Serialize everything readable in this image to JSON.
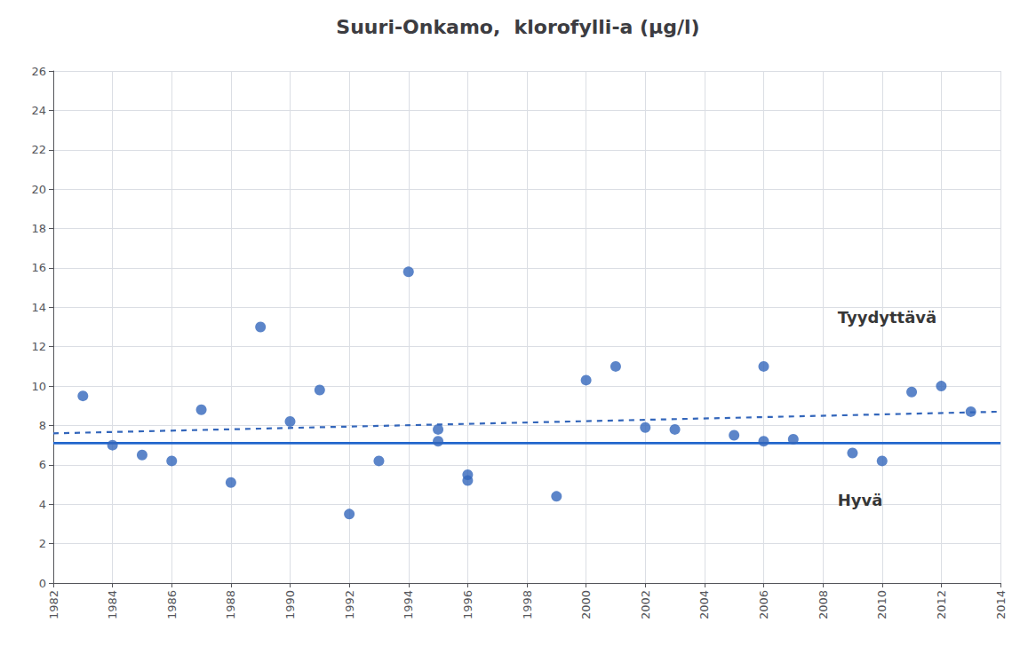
{
  "chart_data": {
    "type": "scatter",
    "title": "Suuri-Onkamo,  klorofylli-a (μg/l)",
    "xlim": [
      1982,
      2014
    ],
    "ylim": [
      0,
      26
    ],
    "xticks": [
      1982,
      1984,
      1986,
      1988,
      1990,
      1992,
      1994,
      1996,
      1998,
      2000,
      2002,
      2004,
      2006,
      2008,
      2010,
      2012,
      2014
    ],
    "yticks": [
      0,
      2,
      4,
      6,
      8,
      10,
      12,
      14,
      16,
      18,
      20,
      22,
      24,
      26
    ],
    "grid": true,
    "series": [
      {
        "type": "scatter",
        "color": "#3366bb",
        "marker": "circle",
        "x": [
          1983,
          1984,
          1985,
          1986,
          1987,
          1988,
          1989,
          1990,
          1991,
          1992,
          1993,
          1994,
          1995,
          1995,
          1996,
          1996,
          1999,
          2000,
          2001,
          2002,
          2003,
          2005,
          2006,
          2006,
          2007,
          2009,
          2010,
          2011,
          2012,
          2013
        ],
        "values": [
          9.5,
          7.0,
          6.5,
          6.2,
          8.8,
          5.1,
          13.0,
          8.2,
          9.8,
          3.5,
          6.2,
          15.8,
          7.8,
          7.2,
          5.2,
          5.5,
          4.4,
          10.3,
          11.0,
          7.9,
          7.8,
          7.5,
          7.2,
          11.0,
          7.3,
          6.6,
          6.2,
          9.7,
          10.0,
          8.7
        ]
      },
      {
        "type": "line",
        "color": "#2266cc",
        "line_style": "solid",
        "x": [
          1982,
          2014
        ],
        "values": [
          7.1,
          7.1
        ]
      },
      {
        "type": "line",
        "color": "#3366bb",
        "line_style": "dashed",
        "x": [
          1982,
          2014
        ],
        "values": [
          7.6,
          8.7
        ]
      }
    ],
    "annotations": [
      {
        "text": "Tyydyttävä",
        "x": 2008.5,
        "y": 13.5
      },
      {
        "text": "Hyvä",
        "x": 2008.5,
        "y": 4.2
      }
    ]
  }
}
